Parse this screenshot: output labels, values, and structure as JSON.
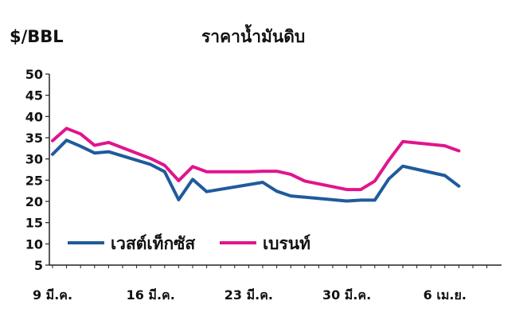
{
  "chart_data": {
    "type": "line",
    "title": "ราคาน้ำมันดิบ",
    "ylabel": "$/BBL",
    "xlabel": "",
    "ylim": [
      5,
      50
    ],
    "yticks": [
      5,
      10,
      15,
      20,
      25,
      30,
      35,
      40,
      45,
      50
    ],
    "xticks": [
      {
        "label": "9 มี.ค.",
        "index": 0
      },
      {
        "label": "16 มี.ค.",
        "index": 7
      },
      {
        "label": "23 มี.ค.",
        "index": 14
      },
      {
        "label": "30 มี.ค.",
        "index": 21
      },
      {
        "label": "6 เม.ย.",
        "index": 28
      }
    ],
    "x_count": 32,
    "grid": false,
    "legend": "inside-bottom-left",
    "series": [
      {
        "name": "เวสต์เท็กซัส",
        "color": "#1f5b9c",
        "points": [
          [
            0,
            31.1
          ],
          [
            1,
            34.4
          ],
          [
            2,
            33.0
          ],
          [
            3,
            31.4
          ],
          [
            4,
            31.7
          ],
          [
            7,
            28.7
          ],
          [
            8,
            27.0
          ],
          [
            9,
            20.4
          ],
          [
            10,
            25.2
          ],
          [
            11,
            22.3
          ],
          [
            15,
            24.5
          ],
          [
            16,
            22.4
          ],
          [
            17,
            21.3
          ],
          [
            21,
            20.1
          ],
          [
            22,
            20.3
          ],
          [
            23,
            20.3
          ],
          [
            24,
            25.3
          ],
          [
            25,
            28.3
          ],
          [
            28,
            26.1
          ],
          [
            29,
            23.6
          ]
        ]
      },
      {
        "name": "เบรนท์",
        "color": "#e0158c",
        "points": [
          [
            0,
            34.3
          ],
          [
            1,
            37.2
          ],
          [
            2,
            35.9
          ],
          [
            3,
            33.2
          ],
          [
            4,
            33.9
          ],
          [
            7,
            30.1
          ],
          [
            8,
            28.5
          ],
          [
            9,
            24.9
          ],
          [
            10,
            28.2
          ],
          [
            11,
            27.0
          ],
          [
            14,
            27.0
          ],
          [
            15,
            27.1
          ],
          [
            16,
            27.1
          ],
          [
            17,
            26.4
          ],
          [
            18,
            24.8
          ],
          [
            21,
            22.8
          ],
          [
            22,
            22.8
          ],
          [
            23,
            24.8
          ],
          [
            24,
            29.7
          ],
          [
            25,
            34.1
          ],
          [
            28,
            33.1
          ],
          [
            29,
            31.9
          ]
        ]
      }
    ]
  }
}
